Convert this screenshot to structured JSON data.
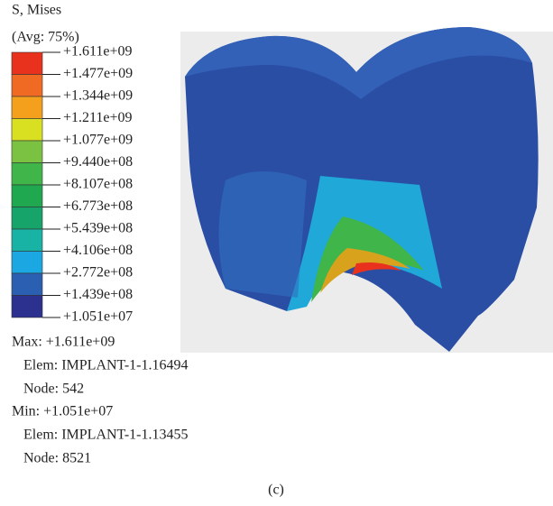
{
  "legend": {
    "title": "S, Mises",
    "subtitle": "(Avg: 75%)",
    "labels": [
      "+1.611e+09",
      "+1.477e+09",
      "+1.344e+09",
      "+1.211e+09",
      "+1.077e+09",
      "+9.440e+08",
      "+8.107e+08",
      "+6.773e+08",
      "+5.439e+08",
      "+4.106e+08",
      "+2.772e+08",
      "+1.439e+08",
      "+1.051e+07"
    ],
    "colors": [
      "#e8321e",
      "#f06a24",
      "#f5a01c",
      "#d9e021",
      "#7cc242",
      "#3fb54a",
      "#1fa84f",
      "#16a46a",
      "#18b3a5",
      "#1ba8e2",
      "#2b5fb2",
      "#2c3190"
    ]
  },
  "info": {
    "max": "Max: +1.611e+09",
    "max_elem": "Elem: IMPLANT-1-1.16494",
    "max_node": "Node: 542",
    "min": "Min: +1.051e+07",
    "min_elem": "Elem: IMPLANT-1-1.13455",
    "min_node": "Node: 8521"
  },
  "caption": "(c)"
}
